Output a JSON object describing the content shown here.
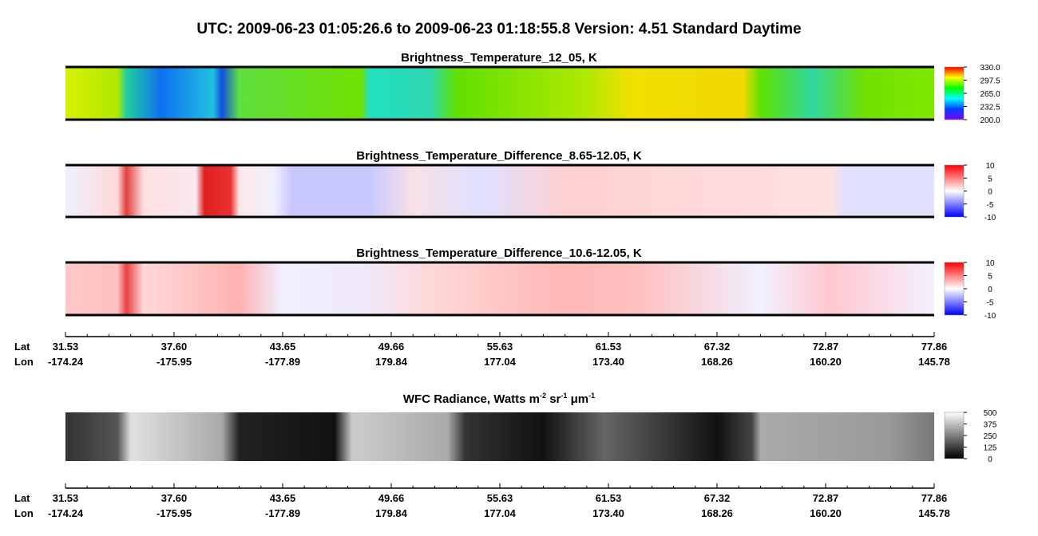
{
  "title": "UTC:  2009-06-23   01:05:26.6  to  2009-06-23   01:18:55.8    Version: 4.51  Standard Daytime",
  "panels": [
    {
      "title": "Brightness_Temperature_12_05, K",
      "colorbar": [
        "330.0",
        "297.5",
        "265.0",
        "232.5",
        "200.0"
      ]
    },
    {
      "title": "Brightness_Temperature_Difference_8.65-12.05, K",
      "colorbar": [
        "10",
        "5",
        "0",
        "-5",
        "-10"
      ]
    },
    {
      "title": "Brightness_Temperature_Difference_10.6-12.05, K",
      "colorbar": [
        "10",
        "5",
        "0",
        "-5",
        "-10"
      ]
    }
  ],
  "wfc": {
    "title": [
      "WFC Radiance, Watts m",
      "-2",
      " sr",
      "-1",
      " μm",
      "-1"
    ],
    "colorbar": [
      "500",
      "375",
      "250",
      "125",
      "0"
    ]
  },
  "axes": [
    {
      "lat_label": "Lat",
      "lon_label": "Lon",
      "lat": [
        "31.53",
        "37.60",
        "43.65",
        "49.66",
        "55.63",
        "61.53",
        "67.32",
        "72.87",
        "77.86"
      ],
      "lon": [
        "-174.24",
        "-175.95",
        "-177.89",
        "179.84",
        "177.04",
        "173.40",
        "168.26",
        "160.20",
        "145.78"
      ]
    },
    {
      "lat_label": "Lat",
      "lon_label": "Lon",
      "lat": [
        "31.53",
        "37.60",
        "43.65",
        "49.66",
        "55.63",
        "61.53",
        "67.32",
        "72.87",
        "77.86"
      ],
      "lon": [
        "-174.24",
        "-175.95",
        "-177.89",
        "179.84",
        "177.04",
        "173.40",
        "168.26",
        "160.20",
        "145.78"
      ]
    }
  ]
}
